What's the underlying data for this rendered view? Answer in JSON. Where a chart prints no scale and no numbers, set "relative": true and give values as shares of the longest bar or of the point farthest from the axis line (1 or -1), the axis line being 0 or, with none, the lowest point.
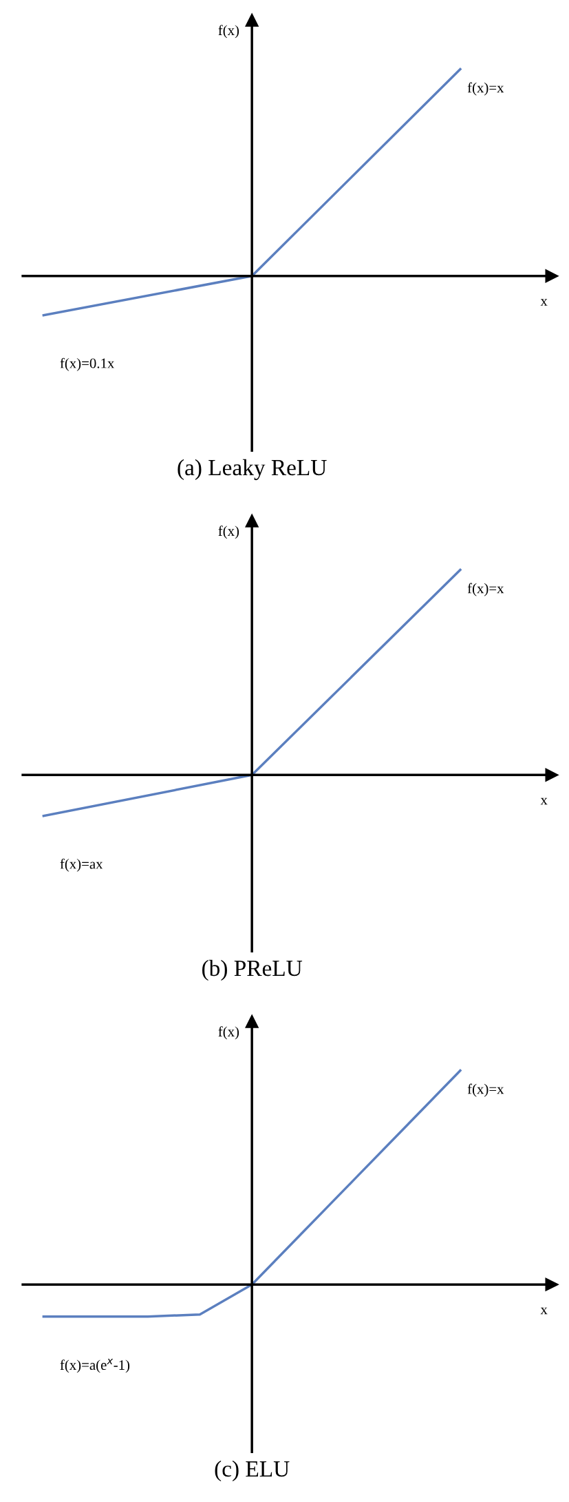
{
  "chart_data": [
    {
      "type": "line",
      "relative": true,
      "xlabel": "x",
      "ylabel": "f(x)",
      "title": "(a) Leaky ReLU",
      "categories": [
        null,
        null,
        null
      ],
      "series": [
        {
          "color": "#5b7fbf",
          "values": [
            -0.19,
            0,
            1
          ]
        }
      ],
      "annotations": [
        "f(x)=x",
        "f(x)=0.1x"
      ]
    },
    {
      "type": "line",
      "relative": true,
      "xlabel": "x",
      "ylabel": "f(x)",
      "title": "(b) PReLU",
      "categories": [
        null,
        null,
        null
      ],
      "series": [
        {
          "color": "#5b7fbf",
          "values": [
            -0.2,
            0,
            1
          ]
        }
      ],
      "annotations": [
        "f(x)=x",
        "f(x)=ax"
      ]
    },
    {
      "type": "line",
      "relative": true,
      "xlabel": "x",
      "ylabel": "f(x)",
      "title": "(c) ELU",
      "categories": [
        null,
        null,
        null,
        null,
        null,
        null,
        null,
        null,
        null
      ],
      "series": [
        {
          "color": "#5b7fbf",
          "values": [
            -0.15,
            -0.15,
            -0.15,
            -0.14,
            0,
            0.25,
            0.5,
            0.75,
            1
          ]
        }
      ],
      "annotations": [
        "f(x)=x",
        "f(x)=a(e$^{x}$-1)"
      ]
    }
  ]
}
